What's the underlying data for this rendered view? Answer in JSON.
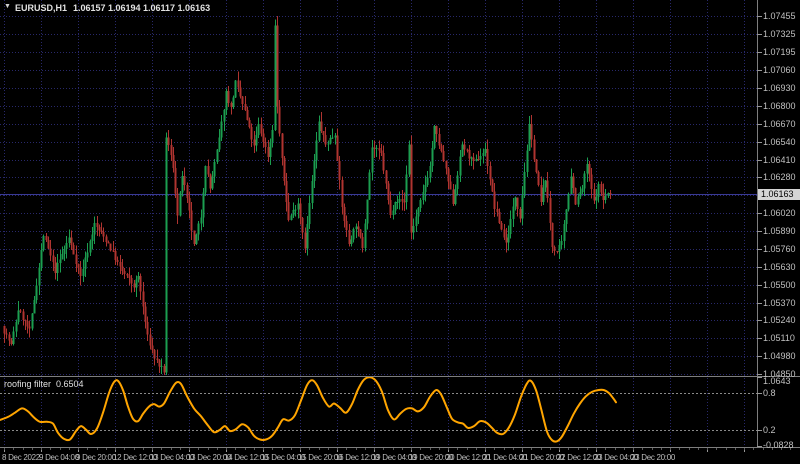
{
  "ui": {
    "title": {
      "icon": "▼",
      "symbol": "EURUSD,H1",
      "ohlc": "1.06157 1.06194 1.06117 1.06163"
    }
  },
  "colors": {
    "background": "#000000",
    "grid": "#28286a",
    "bull": "#1b9e50",
    "bear": "#b03430",
    "bid_line": "#3a3a96",
    "level_line": "#8a8a8a",
    "axis_text": "#c0c0c0",
    "separator": "#7e7e7e",
    "indicator_line": "#ffa500",
    "bid_box_bg": "#d4d4d4",
    "bid_box_text": "#000000"
  },
  "chart_data": [
    {
      "type": "candlestick",
      "title": "EURUSD,H1",
      "ohlc_current": {
        "open": 1.06157,
        "high": 1.06194,
        "low": 1.06117,
        "close": 1.06163,
        "close_text": "1.06163"
      },
      "y_axis": {
        "labels": [
          "1.07455",
          "1.07325",
          "1.07195",
          "1.07060",
          "1.06930",
          "1.06800",
          "1.06670",
          "1.06540",
          "1.06410",
          "1.06280",
          "1.06020",
          "1.05890",
          "1.05760",
          "1.05630",
          "1.05500",
          "1.05370",
          "1.05240",
          "1.05110",
          "1.04980",
          "1.04850"
        ],
        "hidden_gridline": 1.0615,
        "ylim": [
          1.04843,
          1.07571
        ]
      },
      "x_axis": {
        "labels": [
          "8 Dec 2022",
          "9 Dec 04:00",
          "9 Dec 20:00",
          "12 Dec 12:00",
          "13 Dec 04:00",
          "13 Dec 20:00",
          "14 Dec 12:00",
          "15 Dec 04:00",
          "15 Dec 20:00",
          "16 Dec 12:00",
          "19 Dec 04:00",
          "19 Dec 20:00",
          "20 Dec 12:00",
          "21 Dec 04:00",
          "21 Dec 20:00",
          "22 Dec 12:00",
          "23 Dec 04:00",
          "23 Dec 20:00"
        ],
        "first_tick_x": 4,
        "tick_spacing": 37
      },
      "bars": 263,
      "bar_spacing": 2.3125,
      "body_width": 2,
      "seed": 7,
      "jitter": 0.00042,
      "wick_extra": 0.0007,
      "price_path_anchors": [
        [
          0,
          1.052
        ],
        [
          4,
          1.0506
        ],
        [
          7,
          1.0532
        ],
        [
          12,
          1.0516
        ],
        [
          18,
          1.0586
        ],
        [
          23,
          1.056
        ],
        [
          29,
          1.0584
        ],
        [
          34,
          1.0556
        ],
        [
          40,
          1.0594
        ],
        [
          46,
          1.058
        ],
        [
          51,
          1.0562
        ],
        [
          57,
          1.0549
        ],
        [
          59,
          1.0556
        ],
        [
          63,
          1.0512
        ],
        [
          66,
          1.0497
        ],
        [
          69,
          1.0489
        ],
        [
          70,
          1.0484
        ],
        [
          71,
          1.0658
        ],
        [
          74,
          1.0636
        ],
        [
          76,
          1.06
        ],
        [
          78,
          1.063
        ],
        [
          81,
          1.0602
        ],
        [
          83,
          1.0578
        ],
        [
          86,
          1.06
        ],
        [
          88,
          1.0638
        ],
        [
          90,
          1.062
        ],
        [
          94,
          1.0656
        ],
        [
          97,
          1.069
        ],
        [
          99,
          1.0678
        ],
        [
          101,
          1.0697
        ],
        [
          105,
          1.0676
        ],
        [
          109,
          1.065
        ],
        [
          111,
          1.0666
        ],
        [
          115,
          1.0644
        ],
        [
          117,
          1.0664
        ],
        [
          118,
          1.0738
        ],
        [
          119,
          1.068
        ],
        [
          121,
          1.064
        ],
        [
          124,
          1.0597
        ],
        [
          128,
          1.061
        ],
        [
          131,
          1.0578
        ],
        [
          135,
          1.064
        ],
        [
          137,
          1.0668
        ],
        [
          140,
          1.0652
        ],
        [
          144,
          1.066
        ],
        [
          147,
          1.0606
        ],
        [
          150,
          1.058
        ],
        [
          153,
          1.0594
        ],
        [
          156,
          1.0578
        ],
        [
          160,
          1.065
        ],
        [
          164,
          1.0645
        ],
        [
          168,
          1.06
        ],
        [
          170,
          1.0612
        ],
        [
          174,
          1.061
        ],
        [
          176,
          1.0652
        ],
        [
          177,
          1.0588
        ],
        [
          181,
          1.061
        ],
        [
          185,
          1.0636
        ],
        [
          187,
          1.0664
        ],
        [
          191,
          1.064
        ],
        [
          195,
          1.061
        ],
        [
          199,
          1.0652
        ],
        [
          204,
          1.0638
        ],
        [
          209,
          1.0648
        ],
        [
          213,
          1.0606
        ],
        [
          218,
          1.058
        ],
        [
          222,
          1.0614
        ],
        [
          224,
          1.06
        ],
        [
          228,
          1.0665
        ],
        [
          233,
          1.061
        ],
        [
          235,
          1.0628
        ],
        [
          238,
          1.0578
        ],
        [
          240,
          1.0574
        ],
        [
          242,
          1.058
        ],
        [
          246,
          1.063
        ],
        [
          248,
          1.061
        ],
        [
          251,
          1.062
        ],
        [
          253,
          1.0638
        ],
        [
          256,
          1.061
        ],
        [
          258,
          1.0622
        ],
        [
          260,
          1.0612
        ],
        [
          262,
          1.06163
        ]
      ]
    },
    {
      "type": "line",
      "title": "roofing filter",
      "current_value": 0.6504,
      "current_value_text": "0.6504",
      "levels": [
        0.8,
        0.2
      ],
      "ylim": [
        -0.0828,
        1.0643
      ],
      "scale_labels": [
        {
          "text": "1.0643",
          "value": 1.0643
        },
        {
          "text": "0.8",
          "value": 0.8
        },
        {
          "text": "0.2",
          "value": 0.2
        },
        {
          "text": "-0.0828",
          "value": -0.0828
        }
      ],
      "points": [
        [
          0,
          0.36
        ],
        [
          8,
          0.41
        ],
        [
          15,
          0.48
        ],
        [
          22,
          0.55
        ],
        [
          28,
          0.5
        ],
        [
          34,
          0.4
        ],
        [
          40,
          0.33
        ],
        [
          47,
          0.33
        ],
        [
          53,
          0.3
        ],
        [
          58,
          0.15
        ],
        [
          64,
          0.05
        ],
        [
          70,
          0.04
        ],
        [
          76,
          0.18
        ],
        [
          81,
          0.26
        ],
        [
          86,
          0.2
        ],
        [
          91,
          0.13
        ],
        [
          97,
          0.22
        ],
        [
          103,
          0.48
        ],
        [
          109,
          0.8
        ],
        [
          114,
          0.98
        ],
        [
          118,
          1.0
        ],
        [
          123,
          0.85
        ],
        [
          128,
          0.58
        ],
        [
          133,
          0.38
        ],
        [
          138,
          0.34
        ],
        [
          143,
          0.46
        ],
        [
          149,
          0.58
        ],
        [
          154,
          0.62
        ],
        [
          159,
          0.58
        ],
        [
          164,
          0.63
        ],
        [
          170,
          0.82
        ],
        [
          176,
          0.97
        ],
        [
          181,
          0.95
        ],
        [
          187,
          0.75
        ],
        [
          194,
          0.55
        ],
        [
          201,
          0.42
        ],
        [
          208,
          0.27
        ],
        [
          214,
          0.16
        ],
        [
          220,
          0.2
        ],
        [
          225,
          0.26
        ],
        [
          230,
          0.18
        ],
        [
          236,
          0.21
        ],
        [
          242,
          0.29
        ],
        [
          248,
          0.24
        ],
        [
          254,
          0.1
        ],
        [
          260,
          0.04
        ],
        [
          266,
          0.04
        ],
        [
          272,
          0.1
        ],
        [
          278,
          0.24
        ],
        [
          283,
          0.37
        ],
        [
          289,
          0.35
        ],
        [
          295,
          0.44
        ],
        [
          301,
          0.68
        ],
        [
          307,
          0.93
        ],
        [
          312,
          1.01
        ],
        [
          317,
          0.93
        ],
        [
          323,
          0.72
        ],
        [
          329,
          0.58
        ],
        [
          334,
          0.63
        ],
        [
          340,
          0.56
        ],
        [
          346,
          0.48
        ],
        [
          352,
          0.62
        ],
        [
          358,
          0.86
        ],
        [
          364,
          1.02
        ],
        [
          370,
          1.06
        ],
        [
          376,
          1.0
        ],
        [
          382,
          0.82
        ],
        [
          388,
          0.52
        ],
        [
          394,
          0.37
        ],
        [
          400,
          0.46
        ],
        [
          406,
          0.54
        ],
        [
          412,
          0.55
        ],
        [
          418,
          0.5
        ],
        [
          424,
          0.57
        ],
        [
          430,
          0.74
        ],
        [
          436,
          0.85
        ],
        [
          441,
          0.78
        ],
        [
          447,
          0.56
        ],
        [
          452,
          0.38
        ],
        [
          458,
          0.32
        ],
        [
          463,
          0.3
        ],
        [
          468,
          0.23
        ],
        [
          474,
          0.26
        ],
        [
          480,
          0.34
        ],
        [
          486,
          0.32
        ],
        [
          492,
          0.23
        ],
        [
          497,
          0.15
        ],
        [
          503,
          0.13
        ],
        [
          509,
          0.24
        ],
        [
          515,
          0.45
        ],
        [
          521,
          0.74
        ],
        [
          527,
          0.96
        ],
        [
          531,
          1.0
        ],
        [
          536,
          0.85
        ],
        [
          541,
          0.55
        ],
        [
          547,
          0.17
        ],
        [
          552,
          0.03
        ],
        [
          557,
          0.01
        ],
        [
          562,
          0.09
        ],
        [
          568,
          0.27
        ],
        [
          574,
          0.47
        ],
        [
          580,
          0.63
        ],
        [
          586,
          0.75
        ],
        [
          592,
          0.82
        ],
        [
          598,
          0.85
        ],
        [
          604,
          0.85
        ],
        [
          609,
          0.8
        ],
        [
          613,
          0.72
        ],
        [
          616,
          0.6504
        ]
      ]
    }
  ]
}
